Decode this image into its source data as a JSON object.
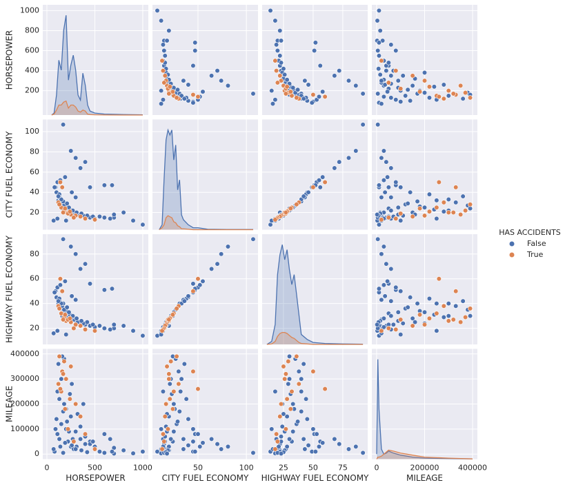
{
  "chart_data": {
    "type": "pairplot",
    "grid": true,
    "panel_color": "#eaeaf2",
    "axes": [
      {
        "name": "HORSEPOWER",
        "lim": [
          -43,
          1058
        ],
        "xticks": [
          0,
          500,
          1000
        ],
        "yticks": [
          200,
          400,
          600,
          800,
          1000
        ]
      },
      {
        "name": "CITY FUEL ECONOMY",
        "lim": [
          3,
          112
        ],
        "xticks": [
          50,
          100
        ],
        "yticks": [
          20,
          40,
          60,
          80,
          100
        ]
      },
      {
        "name": "HIGHWAY FUEL ECONOMY",
        "lim": [
          7,
          96
        ],
        "xticks": [
          25,
          50,
          75
        ],
        "yticks": [
          20,
          40,
          60,
          80
        ]
      },
      {
        "name": "MILEAGE",
        "lim": [
          -20000,
          420000
        ],
        "xticks": [
          0,
          200000,
          400000
        ],
        "yticks": [
          0,
          100000,
          200000,
          300000,
          400000
        ]
      }
    ],
    "legend": {
      "title": "HAS ACCIDENTS",
      "position": "right"
    },
    "series": [
      {
        "name": "False",
        "color": "#4c72b0",
        "values": [
          [
            1000,
            8,
            14,
            10000
          ],
          [
            170,
            107,
            92,
            5000
          ],
          [
            250,
            81,
            86,
            30000
          ],
          [
            300,
            74,
            80,
            20000
          ],
          [
            400,
            70,
            72,
            40000
          ],
          [
            350,
            64,
            68,
            60000
          ],
          [
            600,
            47,
            51,
            80000
          ],
          [
            450,
            45,
            56,
            50000
          ],
          [
            800,
            20,
            22,
            15000
          ],
          [
            900,
            12,
            18,
            3000
          ],
          [
            700,
            15,
            20,
            25000
          ],
          [
            660,
            14,
            19,
            60000
          ],
          [
            150,
            28,
            36,
            120000
          ],
          [
            180,
            25,
            33,
            200000
          ],
          [
            200,
            22,
            30,
            300000
          ],
          [
            250,
            20,
            28,
            150000
          ],
          [
            300,
            18,
            26,
            90000
          ],
          [
            120,
            32,
            40,
            250000
          ],
          [
            130,
            35,
            42,
            60000
          ],
          [
            160,
            30,
            38,
            330000
          ],
          [
            220,
            24,
            32,
            50000
          ],
          [
            280,
            19,
            27,
            20000
          ],
          [
            350,
            17,
            24,
            110000
          ],
          [
            400,
            16,
            23,
            70000
          ],
          [
            450,
            15,
            22,
            40000
          ],
          [
            500,
            14,
            21,
            30000
          ],
          [
            550,
            16,
            22,
            10000
          ],
          [
            600,
            15,
            20,
            5000
          ],
          [
            200,
            26,
            34,
            180000
          ],
          [
            240,
            23,
            31,
            240000
          ],
          [
            180,
            27,
            35,
            380000
          ],
          [
            260,
            21,
            29,
            280000
          ],
          [
            320,
            18,
            25,
            160000
          ],
          [
            380,
            17,
            24,
            200000
          ],
          [
            100,
            40,
            45,
            140000
          ],
          [
            90,
            45,
            50,
            100000
          ],
          [
            110,
            50,
            53,
            80000
          ],
          [
            140,
            52,
            55,
            30000
          ],
          [
            130,
            38,
            44,
            220000
          ],
          [
            210,
            29,
            37,
            130000
          ],
          [
            170,
            31,
            40,
            170000
          ],
          [
            230,
            25,
            33,
            90000
          ],
          [
            270,
            22,
            30,
            60000
          ],
          [
            310,
            20,
            28,
            30000
          ],
          [
            360,
            19,
            26,
            15000
          ],
          [
            420,
            17,
            25,
            8000
          ],
          [
            480,
            16,
            23,
            50000
          ],
          [
            190,
            55,
            58,
            45000
          ],
          [
            260,
            40,
            46,
            35000
          ],
          [
            300,
            35,
            43,
            20000
          ],
          [
            700,
            18,
            23,
            2000
          ],
          [
            150,
            33,
            40,
            300000
          ],
          [
            120,
            36,
            42,
            360000
          ],
          [
            160,
            24,
            30,
            390000
          ],
          [
            80,
            45,
            49,
            10000
          ],
          [
            70,
            12,
            16,
            20000
          ],
          [
            110,
            14,
            18,
            250000
          ],
          [
            200,
            12,
            15,
            100000
          ],
          [
            680,
            47,
            52,
            10000
          ]
        ]
      },
      {
        "name": "True",
        "color": "#dd8452",
        "values": [
          [
            200,
            20,
            26,
            300000
          ],
          [
            250,
            18,
            25,
            350000
          ],
          [
            150,
            25,
            32,
            250000
          ],
          [
            300,
            17,
            23,
            200000
          ],
          [
            180,
            22,
            29,
            370000
          ],
          [
            350,
            16,
            22,
            150000
          ],
          [
            120,
            30,
            38,
            280000
          ],
          [
            220,
            19,
            27,
            100000
          ],
          [
            160,
            45,
            50,
            330000
          ],
          [
            140,
            50,
            60,
            260000
          ],
          [
            280,
            15,
            20,
            50000
          ],
          [
            400,
            14,
            19,
            80000
          ],
          [
            130,
            28,
            36,
            390000
          ],
          [
            240,
            21,
            28,
            220000
          ],
          [
            500,
            13,
            18,
            20000
          ],
          [
            190,
            24,
            31,
            180000
          ],
          [
            170,
            20,
            27,
            320000
          ]
        ]
      }
    ],
    "diagonal": {
      "dlim": [
        0,
        1.05
      ],
      "kde": [
        {
          "x": [
            50,
            75,
            100,
            125,
            150,
            175,
            200,
            225,
            250,
            275,
            300,
            325,
            350,
            375,
            400,
            425,
            450,
            500,
            600,
            800,
            1000
          ],
          "series": [
            [
              0,
              0.02,
              0.2,
              0.55,
              0.45,
              0.85,
              1.0,
              0.35,
              0.5,
              0.6,
              0.45,
              0.2,
              0.15,
              0.42,
              0.3,
              0.1,
              0.04,
              0.02,
              0.01,
              0.005,
              0.003
            ],
            [
              0,
              0.01,
              0.05,
              0.1,
              0.1,
              0.13,
              0.14,
              0.07,
              0.1,
              0.1,
              0.08,
              0.04,
              0.03,
              0.05,
              0.04,
              0.01,
              0.005,
              0.003,
              0.001,
              0,
              0
            ]
          ]
        },
        {
          "x": [
            10,
            13,
            15,
            17,
            19,
            21,
            23,
            25,
            27,
            29,
            31,
            33,
            35,
            40,
            45,
            50,
            60,
            80,
            107
          ],
          "series": [
            [
              0,
              0.05,
              0.5,
              0.9,
              1.0,
              0.95,
              1.0,
              0.7,
              0.85,
              0.4,
              0.5,
              0.15,
              0.1,
              0.05,
              0.02,
              0.02,
              0.005,
              0.002,
              0.002
            ],
            [
              0,
              0.02,
              0.05,
              0.12,
              0.14,
              0.13,
              0.12,
              0.08,
              0.07,
              0.04,
              0.03,
              0.01,
              0.01,
              0.005,
              0,
              0,
              0,
              0,
              0
            ]
          ]
        },
        {
          "x": [
            11,
            15,
            18,
            20,
            22,
            24,
            26,
            28,
            30,
            32,
            34,
            36,
            38,
            40,
            45,
            50,
            60,
            75,
            92
          ],
          "series": [
            [
              0,
              0.03,
              0.2,
              0.7,
              0.9,
              1.0,
              0.85,
              0.95,
              0.75,
              0.6,
              0.7,
              0.5,
              0.3,
              0.1,
              0.05,
              0.02,
              0.01,
              0.005,
              0.003
            ],
            [
              0,
              0.005,
              0.03,
              0.08,
              0.11,
              0.12,
              0.12,
              0.11,
              0.09,
              0.07,
              0.06,
              0.04,
              0.02,
              0.01,
              0.005,
              0,
              0,
              0,
              0
            ]
          ]
        },
        {
          "x": [
            0,
            5000,
            10000,
            20000,
            30000,
            40000,
            50000,
            70000,
            100000,
            150000,
            200000,
            300000,
            400000
          ],
          "series": [
            [
              0.05,
              1.0,
              0.5,
              0.1,
              0.05,
              0.06,
              0.08,
              0.06,
              0.04,
              0.02,
              0.01,
              0.005,
              0.002
            ],
            [
              0,
              0.02,
              0.02,
              0.03,
              0.05,
              0.07,
              0.09,
              0.08,
              0.06,
              0.04,
              0.02,
              0.01,
              0.002
            ]
          ]
        }
      ]
    }
  }
}
